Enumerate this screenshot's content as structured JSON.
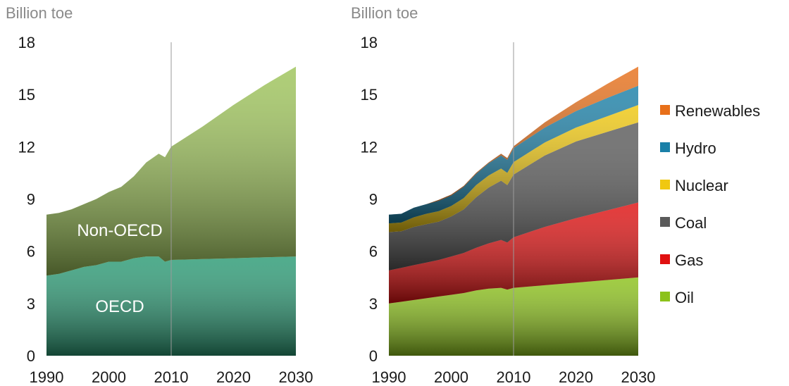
{
  "chart_data": [
    {
      "type": "area",
      "stacked": true,
      "unit_label": "Billion toe",
      "x": [
        1990,
        1992,
        1994,
        1996,
        1998,
        2000,
        2002,
        2004,
        2006,
        2008,
        2009,
        2010,
        2015,
        2020,
        2025,
        2030
      ],
      "series": [
        {
          "name": "OECD",
          "color": "#2a9a74",
          "values": [
            4.6,
            4.7,
            4.9,
            5.1,
            5.2,
            5.4,
            5.4,
            5.6,
            5.7,
            5.7,
            5.4,
            5.5,
            5.55,
            5.6,
            5.65,
            5.7
          ]
        },
        {
          "name": "Non-OECD",
          "color": "#9ec45a",
          "values": [
            3.5,
            3.5,
            3.5,
            3.6,
            3.8,
            4.0,
            4.3,
            4.7,
            5.4,
            5.9,
            6.0,
            6.5,
            7.6,
            8.8,
            9.9,
            10.9
          ]
        }
      ],
      "xlim": [
        1990,
        2030
      ],
      "ylim": [
        0,
        18
      ],
      "x_ticks": [
        "1990",
        "2000",
        "2010",
        "2020",
        "2030"
      ],
      "y_ticks": [
        "0",
        "3",
        "6",
        "9",
        "12",
        "15",
        "18"
      ],
      "divider_x": 2010
    },
    {
      "type": "area",
      "stacked": true,
      "unit_label": "Billion toe",
      "x": [
        1990,
        1992,
        1994,
        1996,
        1998,
        2000,
        2002,
        2004,
        2006,
        2008,
        2009,
        2010,
        2015,
        2020,
        2025,
        2030
      ],
      "series": [
        {
          "name": "Oil",
          "color": "#8cc21a",
          "values": [
            3.0,
            3.1,
            3.2,
            3.3,
            3.4,
            3.5,
            3.6,
            3.75,
            3.85,
            3.9,
            3.8,
            3.9,
            4.05,
            4.2,
            4.35,
            4.5
          ]
        },
        {
          "name": "Gas",
          "color": "#e01010",
          "values": [
            1.9,
            1.95,
            2.0,
            2.05,
            2.1,
            2.2,
            2.3,
            2.45,
            2.6,
            2.75,
            2.7,
            2.9,
            3.35,
            3.7,
            4.0,
            4.3
          ]
        },
        {
          "name": "Coal",
          "color": "#5a5a5a",
          "values": [
            2.2,
            2.1,
            2.2,
            2.2,
            2.2,
            2.3,
            2.5,
            2.9,
            3.2,
            3.4,
            3.3,
            3.6,
            4.1,
            4.4,
            4.5,
            4.6
          ]
        },
        {
          "name": "Nuclear",
          "color": "#f0c810",
          "values": [
            0.5,
            0.5,
            0.55,
            0.6,
            0.6,
            0.6,
            0.65,
            0.7,
            0.7,
            0.7,
            0.7,
            0.72,
            0.75,
            0.8,
            0.9,
            1.0
          ]
        },
        {
          "name": "Hydro",
          "color": "#1a80a8",
          "values": [
            0.5,
            0.5,
            0.55,
            0.55,
            0.6,
            0.6,
            0.65,
            0.65,
            0.7,
            0.75,
            0.75,
            0.8,
            0.85,
            0.95,
            1.05,
            1.1
          ]
        },
        {
          "name": "Renewables",
          "color": "#e8701a",
          "values": [
            0.0,
            0.0,
            0.0,
            0.0,
            0.05,
            0.05,
            0.05,
            0.05,
            0.05,
            0.1,
            0.1,
            0.1,
            0.3,
            0.5,
            0.8,
            1.1
          ]
        }
      ],
      "xlim": [
        1990,
        2030
      ],
      "ylim": [
        0,
        18
      ],
      "x_ticks": [
        "1990",
        "2000",
        "2010",
        "2020",
        "2030"
      ],
      "y_ticks": [
        "0",
        "3",
        "6",
        "9",
        "12",
        "15",
        "18"
      ],
      "divider_x": 2010,
      "legend_position": "right",
      "legend_order": [
        "Renewables",
        "Hydro",
        "Nuclear",
        "Coal",
        "Gas",
        "Oil"
      ]
    }
  ]
}
